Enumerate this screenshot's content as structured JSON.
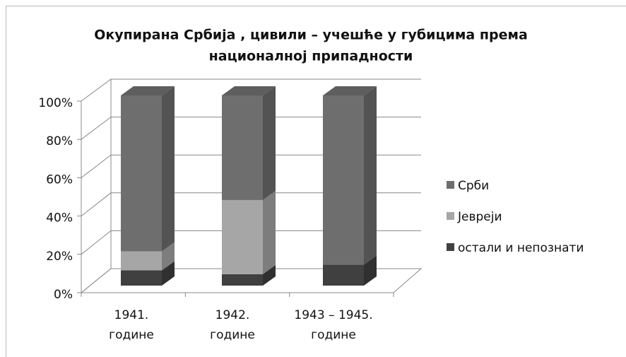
{
  "chart_data": {
    "type": "bar3d_stacked_percent",
    "title": [
      "Окупирана Србија , цивили – учешће у губицима према",
      "националној припадности"
    ],
    "categories": [
      [
        "1941.",
        "године"
      ],
      [
        "1942.",
        "године"
      ],
      [
        "1943 – 1945.",
        "године"
      ]
    ],
    "series": [
      {
        "name": "остали и непознати",
        "color": "#404040",
        "values": [
          8,
          6,
          11
        ]
      },
      {
        "name": "Јевреји",
        "color": "#a6a6a6",
        "values": [
          10,
          39,
          0
        ]
      },
      {
        "name": "Срби",
        "color": "#6e6e6e",
        "values": [
          82,
          55,
          89
        ]
      }
    ],
    "legend_order": [
      2,
      1,
      0
    ],
    "ylim": [
      0,
      100
    ],
    "yticks": [
      {
        "value": 0,
        "label": "0%"
      },
      {
        "value": 20,
        "label": "20%"
      },
      {
        "value": 40,
        "label": "40%"
      },
      {
        "value": 60,
        "label": "60%"
      },
      {
        "value": 80,
        "label": "80%"
      },
      {
        "value": 100,
        "label": "100%"
      }
    ],
    "grid": true,
    "legend": "right"
  }
}
